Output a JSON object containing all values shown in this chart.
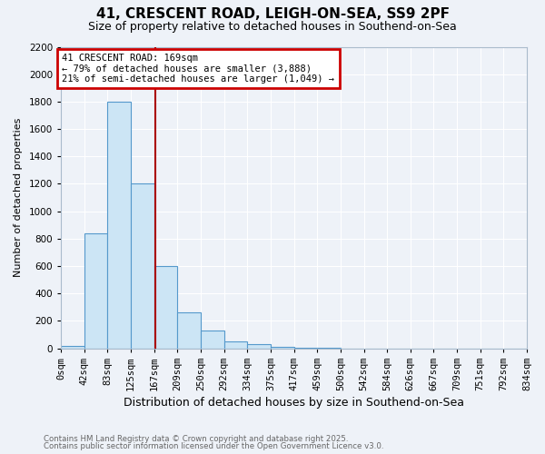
{
  "title": "41, CRESCENT ROAD, LEIGH-ON-SEA, SS9 2PF",
  "subtitle": "Size of property relative to detached houses in Southend-on-Sea",
  "xlabel": "Distribution of detached houses by size in Southend-on-Sea",
  "ylabel": "Number of detached properties",
  "footnote1": "Contains HM Land Registry data © Crown copyright and database right 2025.",
  "footnote2": "Contains public sector information licensed under the Open Government Licence v3.0.",
  "annotation_line1": "41 CRESCENT ROAD: 169sqm",
  "annotation_line2": "← 79% of detached houses are smaller (3,888)",
  "annotation_line3": "21% of semi-detached houses are larger (1,049) →",
  "property_size": 169,
  "bar_color": "#cce5f5",
  "bar_edge_color": "#5599cc",
  "vline_color": "#aa0000",
  "annotation_box_color": "#cc0000",
  "background_color": "#eef2f8",
  "ylim": [
    0,
    2200
  ],
  "xlim": [
    0,
    834
  ],
  "bin_left_edges": [
    0,
    41.667,
    83.333,
    125.0,
    166.667,
    208.333,
    250.0,
    291.667,
    333.333,
    375.0,
    416.667,
    458.333,
    500.0,
    541.667,
    583.333,
    625.0,
    666.667,
    708.333,
    750.0,
    791.667
  ],
  "bin_labels": [
    "0sqm",
    "42sqm",
    "83sqm",
    "125sqm",
    "167sqm",
    "209sqm",
    "250sqm",
    "292sqm",
    "334sqm",
    "375sqm",
    "417sqm",
    "459sqm",
    "500sqm",
    "542sqm",
    "584sqm",
    "626sqm",
    "667sqm",
    "709sqm",
    "751sqm",
    "792sqm",
    "834sqm"
  ],
  "counts": [
    20,
    840,
    1800,
    1200,
    600,
    260,
    130,
    50,
    30,
    10,
    5,
    2,
    0,
    0,
    0,
    0,
    0,
    0,
    0,
    0
  ],
  "yticks": [
    0,
    200,
    400,
    600,
    800,
    1000,
    1200,
    1400,
    1600,
    1800,
    2000,
    2200
  ],
  "grid_color": "#ffffff",
  "tick_fontsize": 7.5,
  "ylabel_fontsize": 8,
  "xlabel_fontsize": 9
}
